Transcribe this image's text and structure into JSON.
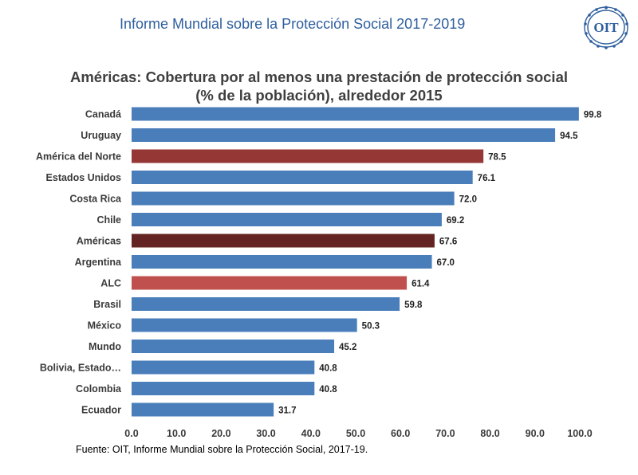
{
  "header": {
    "title": "Informe Mundial sobre la Protección Social 2017-2019"
  },
  "logo": {
    "text": "OIT",
    "color": "#2f5f9e"
  },
  "chart_data": {
    "type": "bar",
    "orientation": "horizontal",
    "title_line1": "Américas: Cobertura por al menos una prestación de protección social",
    "title_line2": "(% de la población), alrededor 2015",
    "xlabel": "",
    "ylabel": "",
    "xlim": [
      0,
      100
    ],
    "grid": false,
    "ticks": [
      "0.0",
      "10.0",
      "20.0",
      "30.0",
      "40.0",
      "50.0",
      "60.0",
      "70.0",
      "80.0",
      "90.0",
      "100.0"
    ],
    "tick_values": [
      0,
      10,
      20,
      30,
      40,
      50,
      60,
      70,
      80,
      90,
      100
    ],
    "categories": [
      "Canadá",
      "Uruguay",
      "América del Norte",
      "Estados Unidos",
      "Costa Rica",
      "Chile",
      "Américas",
      "Argentina",
      "ALC",
      "Brasil",
      "México",
      "Mundo",
      "Bolivia, Estado…",
      "Colombia",
      "Ecuador"
    ],
    "values": [
      99.8,
      94.5,
      78.5,
      76.1,
      72.0,
      69.2,
      67.6,
      67.0,
      61.4,
      59.8,
      50.3,
      45.2,
      40.8,
      40.8,
      31.7
    ],
    "value_labels": [
      "99.8",
      "94.5",
      "78.5",
      "76.1",
      "72.0",
      "69.2",
      "67.6",
      "67.0",
      "61.4",
      "59.8",
      "50.3",
      "45.2",
      "40.8",
      "40.8",
      "31.7"
    ],
    "colors": [
      "#4a7ebb",
      "#4a7ebb",
      "#953735",
      "#4a7ebb",
      "#4a7ebb",
      "#4a7ebb",
      "#632423",
      "#4a7ebb",
      "#c0504d",
      "#4a7ebb",
      "#4a7ebb",
      "#4a7ebb",
      "#4a7ebb",
      "#4a7ebb",
      "#4a7ebb"
    ]
  },
  "footer": {
    "source": "Fuente: OIT, Informe Mundial sobre la Protección Social, 2017-19."
  }
}
